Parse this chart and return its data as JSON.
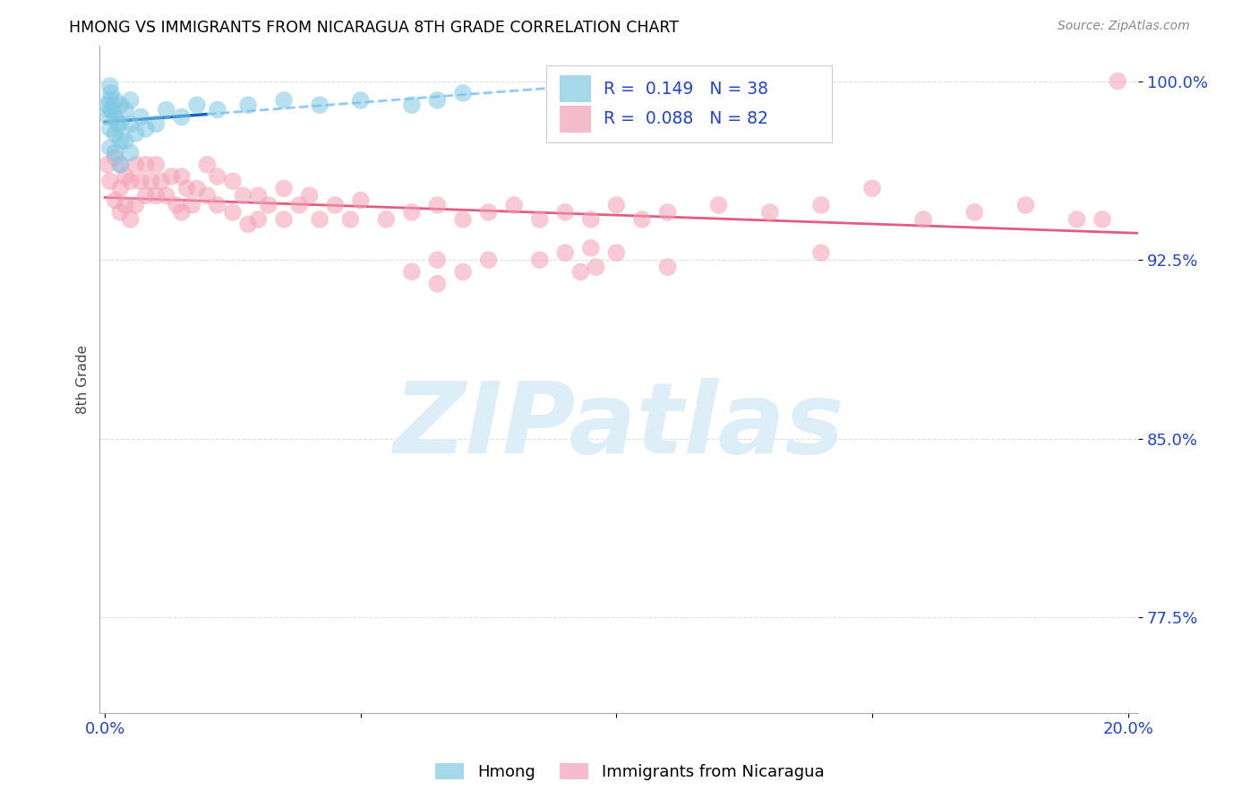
{
  "title": "HMONG VS IMMIGRANTS FROM NICARAGUA 8TH GRADE CORRELATION CHART",
  "source": "Source: ZipAtlas.com",
  "ylabel_label": "8th Grade",
  "xlim": [
    -0.001,
    0.202
  ],
  "ylim": [
    0.735,
    1.015
  ],
  "xtick_positions": [
    0.0,
    0.05,
    0.1,
    0.15,
    0.2
  ],
  "xtick_labels": [
    "0.0%",
    "",
    "",
    "",
    "20.0%"
  ],
  "ytick_positions": [
    0.775,
    0.85,
    0.925,
    1.0
  ],
  "ytick_labels": [
    "77.5%",
    "85.0%",
    "92.5%",
    "100.0%"
  ],
  "hmong_R": 0.149,
  "hmong_N": 38,
  "nicaragua_R": 0.088,
  "nicaragua_N": 82,
  "hmong_color": "#7ec8e3",
  "nicaragua_color": "#f4a0b5",
  "hmong_line_color": "#1565c0",
  "hmong_line_dash_color": "#90caf9",
  "nicaragua_line_color": "#e05f80",
  "watermark_color": "#ddeef8",
  "grid_color": "#e0e0e0",
  "hmong_x": [
    0.0005,
    0.0007,
    0.001,
    0.001,
    0.001,
    0.001,
    0.001,
    0.0012,
    0.0015,
    0.002,
    0.002,
    0.002,
    0.002,
    0.0025,
    0.003,
    0.003,
    0.003,
    0.003,
    0.004,
    0.004,
    0.005,
    0.005,
    0.005,
    0.006,
    0.007,
    0.008,
    0.01,
    0.012,
    0.015,
    0.018,
    0.022,
    0.028,
    0.035,
    0.042,
    0.05,
    0.06,
    0.065,
    0.07
  ],
  "hmong_y": [
    0.99,
    0.985,
    0.998,
    0.992,
    0.988,
    0.98,
    0.972,
    0.995,
    0.988,
    0.992,
    0.985,
    0.978,
    0.97,
    0.982,
    0.99,
    0.982,
    0.975,
    0.965,
    0.988,
    0.975,
    0.992,
    0.982,
    0.97,
    0.978,
    0.985,
    0.98,
    0.982,
    0.988,
    0.985,
    0.99,
    0.988,
    0.99,
    0.992,
    0.99,
    0.992,
    0.99,
    0.992,
    0.995
  ],
  "nicaragua_x": [
    0.0005,
    0.001,
    0.002,
    0.002,
    0.003,
    0.003,
    0.003,
    0.004,
    0.004,
    0.005,
    0.005,
    0.006,
    0.006,
    0.007,
    0.008,
    0.008,
    0.009,
    0.01,
    0.01,
    0.011,
    0.012,
    0.013,
    0.014,
    0.015,
    0.015,
    0.016,
    0.017,
    0.018,
    0.02,
    0.02,
    0.022,
    0.022,
    0.025,
    0.025,
    0.027,
    0.028,
    0.03,
    0.03,
    0.032,
    0.035,
    0.035,
    0.038,
    0.04,
    0.042,
    0.045,
    0.048,
    0.05,
    0.055,
    0.06,
    0.065,
    0.07,
    0.075,
    0.08,
    0.085,
    0.09,
    0.095,
    0.1,
    0.105,
    0.11,
    0.12,
    0.13,
    0.14,
    0.16,
    0.17,
    0.18,
    0.19,
    0.195,
    0.198,
    0.06,
    0.065,
    0.065,
    0.07,
    0.075,
    0.095,
    0.1,
    0.11,
    0.14,
    0.15,
    0.085,
    0.09,
    0.093,
    0.096
  ],
  "nicaragua_y": [
    0.965,
    0.958,
    0.968,
    0.95,
    0.965,
    0.955,
    0.945,
    0.96,
    0.948,
    0.958,
    0.942,
    0.965,
    0.948,
    0.958,
    0.965,
    0.952,
    0.958,
    0.965,
    0.952,
    0.958,
    0.952,
    0.96,
    0.948,
    0.96,
    0.945,
    0.955,
    0.948,
    0.955,
    0.965,
    0.952,
    0.96,
    0.948,
    0.945,
    0.958,
    0.952,
    0.94,
    0.952,
    0.942,
    0.948,
    0.955,
    0.942,
    0.948,
    0.952,
    0.942,
    0.948,
    0.942,
    0.95,
    0.942,
    0.945,
    0.948,
    0.942,
    0.945,
    0.948,
    0.942,
    0.945,
    0.942,
    0.948,
    0.942,
    0.945,
    0.948,
    0.945,
    0.948,
    0.942,
    0.945,
    0.948,
    0.942,
    0.942,
    1.0,
    0.92,
    0.925,
    0.915,
    0.92,
    0.925,
    0.93,
    0.928,
    0.922,
    0.928,
    0.955,
    0.925,
    0.928,
    0.92,
    0.922
  ]
}
